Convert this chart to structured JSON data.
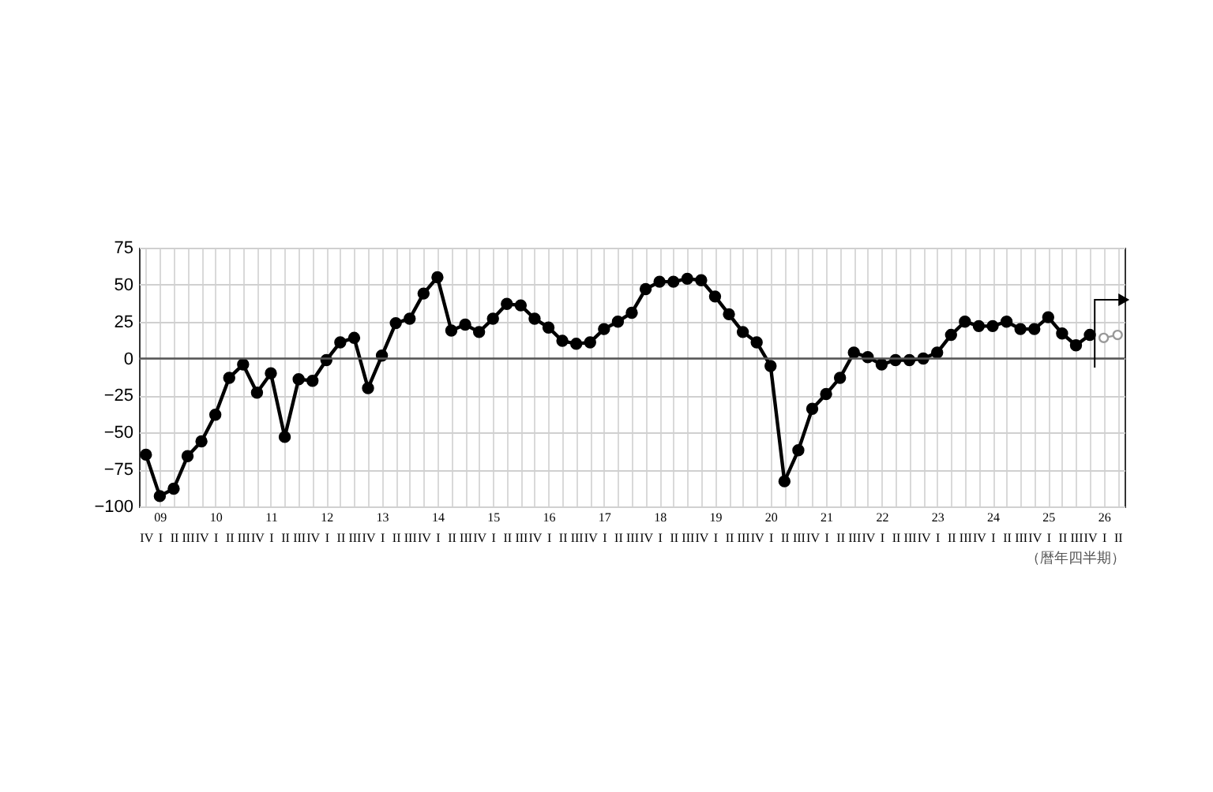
{
  "chart_data": {
    "type": "line",
    "xlabel": "（暦年四半期）",
    "categories": [
      "IV",
      "09\nI",
      "II",
      "III",
      "IV",
      "10\nI",
      "II",
      "III",
      "IV",
      "11\nI",
      "II",
      "III",
      "IV",
      "12\nI",
      "II",
      "III",
      "IV",
      "13\nI",
      "II",
      "III",
      "IV",
      "14\nI",
      "II",
      "III",
      "IV",
      "15\nI",
      "II",
      "III",
      "IV",
      "16\nI",
      "II",
      "III",
      "IV",
      "17\nI",
      "II",
      "III",
      "IV",
      "18\nI",
      "II",
      "III",
      "IV",
      "19\nI",
      "II",
      "III",
      "IV",
      "20\nI",
      "II",
      "III",
      "IV",
      "21\nI",
      "II",
      "III",
      "IV",
      "22\nI",
      "II",
      "III",
      "IV",
      "23\nI",
      "II",
      "III",
      "IV",
      "24\nI",
      "II",
      "III",
      "IV",
      "25\nI",
      "II",
      "III",
      "IV",
      "26\nI",
      "II"
    ],
    "series": [
      {
        "color": "#000000",
        "values": [
          -65,
          -93,
          -88,
          -66,
          -56,
          -38,
          -13,
          -4,
          -23,
          -10,
          -53,
          -14,
          -15,
          -1,
          11,
          14,
          -20,
          2,
          24,
          27,
          44,
          55,
          19,
          23,
          18,
          27,
          37,
          36,
          27,
          21,
          12,
          10,
          11,
          20,
          25,
          31,
          47,
          52,
          52,
          54,
          53,
          42,
          30,
          18,
          11,
          -5,
          -83,
          -62,
          -34,
          -24,
          -13,
          4,
          1,
          -4,
          -1,
          -1,
          0,
          4,
          16,
          25,
          22,
          22,
          25,
          20,
          20,
          28,
          17,
          9,
          16,
          null,
          null
        ]
      },
      {
        "color": "#999999",
        "values": [
          null,
          null,
          null,
          null,
          null,
          null,
          null,
          null,
          null,
          null,
          null,
          null,
          null,
          null,
          null,
          null,
          null,
          null,
          null,
          null,
          null,
          null,
          null,
          null,
          null,
          null,
          null,
          null,
          null,
          null,
          null,
          null,
          null,
          null,
          null,
          null,
          null,
          null,
          null,
          null,
          null,
          null,
          null,
          null,
          null,
          null,
          null,
          null,
          null,
          null,
          null,
          null,
          null,
          null,
          null,
          null,
          null,
          null,
          null,
          null,
          null,
          null,
          null,
          null,
          null,
          null,
          null,
          null,
          null,
          14,
          16
        ]
      }
    ],
    "ylim": [
      -100,
      75
    ],
    "yticks": [
      -100,
      -75,
      -50,
      -25,
      0,
      25,
      50,
      75
    ],
    "grid": true,
    "marker": "circle",
    "line_style": "solid",
    "ref_lines": [
      {
        "axis": "y",
        "value": 0,
        "color": "#555555"
      }
    ]
  }
}
